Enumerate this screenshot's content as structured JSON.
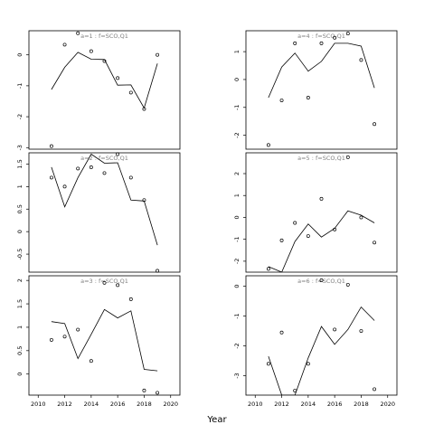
{
  "figure": {
    "xlabel": "Year"
  },
  "chart_data": [
    {
      "type": "scatter",
      "panel": "a=1",
      "title": "a=1 : f=SCO,Q1",
      "xlim": [
        2009.3,
        2020.7
      ],
      "ylim": [
        -3.05,
        0.78
      ],
      "xticks": [],
      "yticks": [
        0,
        -1,
        -2,
        -3
      ],
      "points": [
        [
          2011,
          -2.95
        ],
        [
          2012,
          0.33
        ],
        [
          2013,
          0.7
        ],
        [
          2014,
          0.12
        ],
        [
          2015,
          -0.2
        ],
        [
          2016,
          -0.75
        ],
        [
          2017,
          -1.22
        ],
        [
          2018,
          -1.75
        ],
        [
          2019,
          0.0
        ]
      ],
      "line": [
        [
          2011,
          -1.12
        ],
        [
          2012,
          -0.4
        ],
        [
          2013,
          0.08
        ],
        [
          2014,
          -0.14
        ],
        [
          2015,
          -0.15
        ],
        [
          2016,
          -0.98
        ],
        [
          2017,
          -0.97
        ],
        [
          2018,
          -1.72
        ],
        [
          2019,
          -0.28
        ]
      ]
    },
    {
      "type": "scatter",
      "panel": "a=2",
      "title": "a=2 : f=SCO,Q1",
      "xlim": [
        2009.3,
        2020.7
      ],
      "ylim": [
        -0.9,
        1.75
      ],
      "xticks": [],
      "yticks": [
        1.5,
        1.0,
        0.5,
        0.0,
        -0.5
      ],
      "points": [
        [
          2011,
          1.2
        ],
        [
          2012,
          1.0
        ],
        [
          2013,
          1.4
        ],
        [
          2014,
          1.43
        ],
        [
          2015,
          1.3
        ],
        [
          2016,
          1.72
        ],
        [
          2017,
          1.2
        ],
        [
          2018,
          0.7
        ],
        [
          2019,
          -0.87
        ]
      ],
      "line": [
        [
          2011,
          1.43
        ],
        [
          2012,
          0.55
        ],
        [
          2013,
          1.2
        ],
        [
          2014,
          1.72
        ],
        [
          2015,
          1.52
        ],
        [
          2016,
          1.53
        ],
        [
          2017,
          0.7
        ],
        [
          2018,
          0.68
        ],
        [
          2019,
          -0.3
        ]
      ]
    },
    {
      "type": "scatter",
      "panel": "a=3",
      "title": "a=3 : f=SCO,Q1",
      "xlim": [
        2009.3,
        2020.7
      ],
      "ylim": [
        -0.45,
        2.1
      ],
      "xticks": [
        2010,
        2012,
        2014,
        2016,
        2018,
        2020
      ],
      "yticks": [
        2.0,
        1.5,
        1.0,
        0.5,
        0.0
      ],
      "points": [
        [
          2011,
          0.73
        ],
        [
          2012,
          0.8
        ],
        [
          2013,
          0.95
        ],
        [
          2014,
          0.28
        ],
        [
          2015,
          1.95
        ],
        [
          2016,
          1.9
        ],
        [
          2017,
          1.6
        ],
        [
          2018,
          -0.35
        ],
        [
          2019,
          -0.4
        ]
      ],
      "line": [
        [
          2011,
          1.12
        ],
        [
          2012,
          1.08
        ],
        [
          2013,
          0.33
        ],
        [
          2014,
          0.85
        ],
        [
          2015,
          1.38
        ],
        [
          2016,
          1.2
        ],
        [
          2017,
          1.35
        ],
        [
          2018,
          0.1
        ],
        [
          2019,
          0.07
        ]
      ]
    },
    {
      "type": "scatter",
      "panel": "a=4",
      "title": "a=4 : f=SCO,Q1",
      "xlim": [
        2009.3,
        2020.7
      ],
      "ylim": [
        -2.5,
        1.75
      ],
      "xticks": [],
      "yticks": [
        1,
        0,
        -1,
        -2
      ],
      "points": [
        [
          2011,
          -2.35
        ],
        [
          2012,
          -0.75
        ],
        [
          2013,
          1.3
        ],
        [
          2014,
          -0.65
        ],
        [
          2015,
          1.3
        ],
        [
          2016,
          1.5
        ],
        [
          2017,
          1.65
        ],
        [
          2018,
          0.7
        ],
        [
          2019,
          -1.6
        ]
      ],
      "line": [
        [
          2011,
          -0.65
        ],
        [
          2012,
          0.45
        ],
        [
          2013,
          0.95
        ],
        [
          2014,
          0.3
        ],
        [
          2015,
          0.65
        ],
        [
          2016,
          1.3
        ],
        [
          2017,
          1.3
        ],
        [
          2018,
          1.2
        ],
        [
          2019,
          -0.3
        ]
      ]
    },
    {
      "type": "scatter",
      "panel": "a=5",
      "title": "a=5 : f=SCO,Q1",
      "xlim": [
        2009.3,
        2020.7
      ],
      "ylim": [
        -2.5,
        2.95
      ],
      "xticks": [],
      "yticks": [
        2,
        1,
        0,
        -1,
        -2
      ],
      "points": [
        [
          2011,
          -2.35
        ],
        [
          2012,
          -1.05
        ],
        [
          2013,
          -0.25
        ],
        [
          2014,
          -0.85
        ],
        [
          2015,
          0.85
        ],
        [
          2016,
          -0.55
        ],
        [
          2017,
          2.75
        ],
        [
          2018,
          0.0
        ],
        [
          2019,
          -1.15
        ]
      ],
      "line": [
        [
          2011,
          -2.25
        ],
        [
          2012,
          -2.5
        ],
        [
          2013,
          -1.1
        ],
        [
          2014,
          -0.3
        ],
        [
          2015,
          -0.9
        ],
        [
          2016,
          -0.5
        ],
        [
          2017,
          0.3
        ],
        [
          2018,
          0.1
        ],
        [
          2019,
          -0.25
        ]
      ]
    },
    {
      "type": "scatter",
      "panel": "a=6",
      "title": "a=6 : f=SCO,Q1",
      "xlim": [
        2009.3,
        2020.7
      ],
      "ylim": [
        -3.65,
        0.35
      ],
      "xticks": [
        2010,
        2012,
        2014,
        2016,
        2018,
        2020
      ],
      "yticks": [
        0,
        -1,
        -2,
        -3
      ],
      "points": [
        [
          2011,
          -2.6
        ],
        [
          2012,
          -1.55
        ],
        [
          2013,
          -3.5
        ],
        [
          2014,
          -2.6
        ],
        [
          2015,
          0.2
        ],
        [
          2016,
          -1.45
        ],
        [
          2017,
          0.05
        ],
        [
          2018,
          -1.5
        ],
        [
          2019,
          -3.45
        ]
      ],
      "line": [
        [
          2011,
          -2.35
        ],
        [
          2012,
          -3.65
        ],
        [
          2013,
          -3.65
        ],
        [
          2014,
          -2.4
        ],
        [
          2015,
          -1.35
        ],
        [
          2016,
          -1.95
        ],
        [
          2017,
          -1.45
        ],
        [
          2018,
          -0.7
        ],
        [
          2019,
          -1.15
        ]
      ]
    }
  ]
}
